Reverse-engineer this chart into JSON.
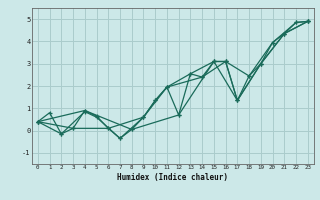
{
  "title": "",
  "xlabel": "Humidex (Indice chaleur)",
  "bg_color": "#cce8e8",
  "grid_color": "#aacccc",
  "line_color": "#1a6b5a",
  "xlim": [
    -0.5,
    23.5
  ],
  "ylim": [
    -1.5,
    5.5
  ],
  "yticks": [
    -1,
    0,
    1,
    2,
    3,
    4,
    5
  ],
  "xticks": [
    0,
    1,
    2,
    3,
    4,
    5,
    6,
    7,
    8,
    9,
    10,
    11,
    12,
    13,
    14,
    15,
    16,
    17,
    18,
    19,
    20,
    21,
    22,
    23
  ],
  "series": [
    [
      0,
      0.4
    ],
    [
      1,
      0.8
    ],
    [
      2,
      -0.15
    ],
    [
      3,
      0.1
    ],
    [
      4,
      0.9
    ],
    [
      5,
      0.65
    ],
    [
      6,
      0.1
    ],
    [
      7,
      -0.35
    ],
    [
      8,
      0.05
    ],
    [
      9,
      0.6
    ],
    [
      10,
      1.35
    ],
    [
      11,
      1.95
    ],
    [
      12,
      0.7
    ],
    [
      13,
      2.55
    ],
    [
      14,
      2.4
    ],
    [
      15,
      3.1
    ],
    [
      16,
      3.1
    ],
    [
      17,
      1.35
    ],
    [
      18,
      2.45
    ],
    [
      19,
      3.0
    ],
    [
      20,
      3.95
    ],
    [
      21,
      4.35
    ],
    [
      22,
      4.85
    ],
    [
      23,
      4.9
    ]
  ],
  "series2": [
    [
      0,
      0.4
    ],
    [
      2,
      -0.15
    ],
    [
      4,
      0.85
    ],
    [
      5,
      0.6
    ],
    [
      7,
      -0.35
    ],
    [
      9,
      0.6
    ],
    [
      10,
      1.35
    ],
    [
      11,
      1.95
    ],
    [
      13,
      2.55
    ],
    [
      15,
      3.1
    ],
    [
      16,
      3.1
    ],
    [
      17,
      1.35
    ],
    [
      19,
      3.0
    ],
    [
      21,
      4.35
    ],
    [
      23,
      4.9
    ]
  ],
  "series3": [
    [
      0,
      0.4
    ],
    [
      3,
      0.1
    ],
    [
      6,
      0.1
    ],
    [
      9,
      0.6
    ],
    [
      11,
      1.95
    ],
    [
      14,
      2.4
    ],
    [
      16,
      3.1
    ],
    [
      18,
      2.45
    ],
    [
      20,
      3.95
    ],
    [
      22,
      4.85
    ],
    [
      23,
      4.9
    ]
  ],
  "series4": [
    [
      0,
      0.4
    ],
    [
      4,
      0.9
    ],
    [
      8,
      0.05
    ],
    [
      12,
      0.7
    ],
    [
      15,
      3.1
    ],
    [
      17,
      1.35
    ],
    [
      19,
      3.0
    ],
    [
      21,
      4.35
    ],
    [
      23,
      4.9
    ]
  ]
}
